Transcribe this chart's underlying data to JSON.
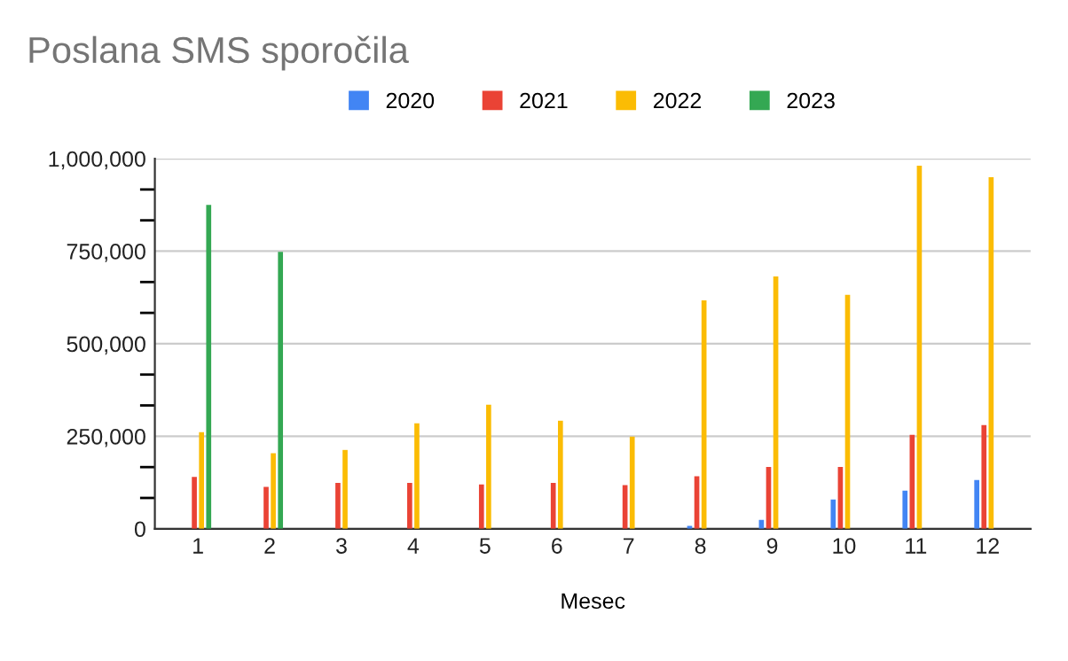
{
  "chart_data": {
    "type": "bar",
    "title": "Poslana SMS sporočila",
    "xlabel": "Mesec",
    "categories": [
      "1",
      "2",
      "3",
      "4",
      "5",
      "6",
      "7",
      "8",
      "9",
      "10",
      "11",
      "12"
    ],
    "series": [
      {
        "name": "2020",
        "color": "#4285f4",
        "values": [
          0,
          0,
          0,
          0,
          0,
          0,
          0,
          8000,
          24000,
          79000,
          103000,
          132000
        ]
      },
      {
        "name": "2021",
        "color": "#ea4335",
        "values": [
          140000,
          113000,
          124000,
          124000,
          120000,
          124000,
          118000,
          142000,
          167000,
          167000,
          254000,
          280000
        ]
      },
      {
        "name": "2022",
        "color": "#fbbc04",
        "values": [
          261000,
          204000,
          213000,
          285000,
          335000,
          292000,
          249000,
          617000,
          682000,
          632000,
          981000,
          950000
        ]
      },
      {
        "name": "2023",
        "color": "#34a853",
        "values": [
          875000,
          748000,
          null,
          null,
          null,
          null,
          null,
          null,
          null,
          null,
          null,
          null
        ]
      }
    ],
    "ylim": [
      0,
      1000000
    ],
    "yticks": [
      {
        "value": 0,
        "label": "0"
      },
      {
        "value": 250000,
        "label": "250,000"
      },
      {
        "value": 500000,
        "label": "500,000"
      },
      {
        "value": 750000,
        "label": "750,000"
      },
      {
        "value": 1000000,
        "label": "1,000,000"
      }
    ],
    "grid": "y",
    "legend": "top"
  }
}
